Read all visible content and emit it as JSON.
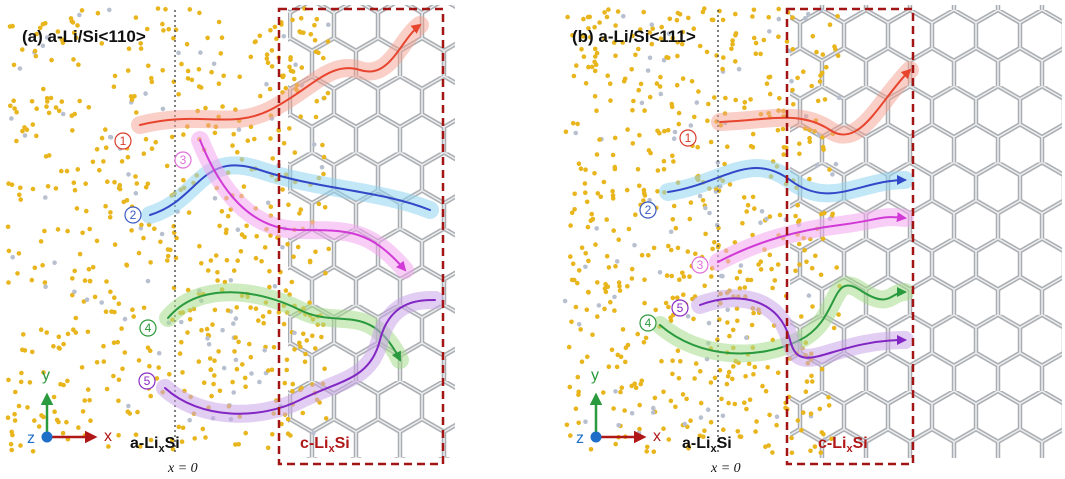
{
  "panels": [
    {
      "title": "(a) a-Li/Si<110>",
      "paths": [
        "1",
        "2",
        "3",
        "4",
        "5"
      ],
      "axes": {
        "y": "y",
        "z": "z",
        "x": "x"
      },
      "amorphous": {
        "main": "a-Li",
        "sub": "x",
        "rest": "Si"
      },
      "crystal": {
        "main": "c-Li",
        "sub": "x",
        "rest": "Si"
      },
      "origin": "x = 0"
    },
    {
      "title": "(b) a-Li/Si<111>",
      "paths": [
        "1",
        "2",
        "3",
        "4",
        "5"
      ],
      "axes": {
        "y": "y",
        "z": "z",
        "x": "x"
      },
      "amorphous": {
        "main": "a-Li",
        "sub": "x",
        "rest": "Si"
      },
      "crystal": {
        "main": "c-Li",
        "sub": "x",
        "rest": "Si"
      },
      "origin": "x = 0"
    }
  ]
}
